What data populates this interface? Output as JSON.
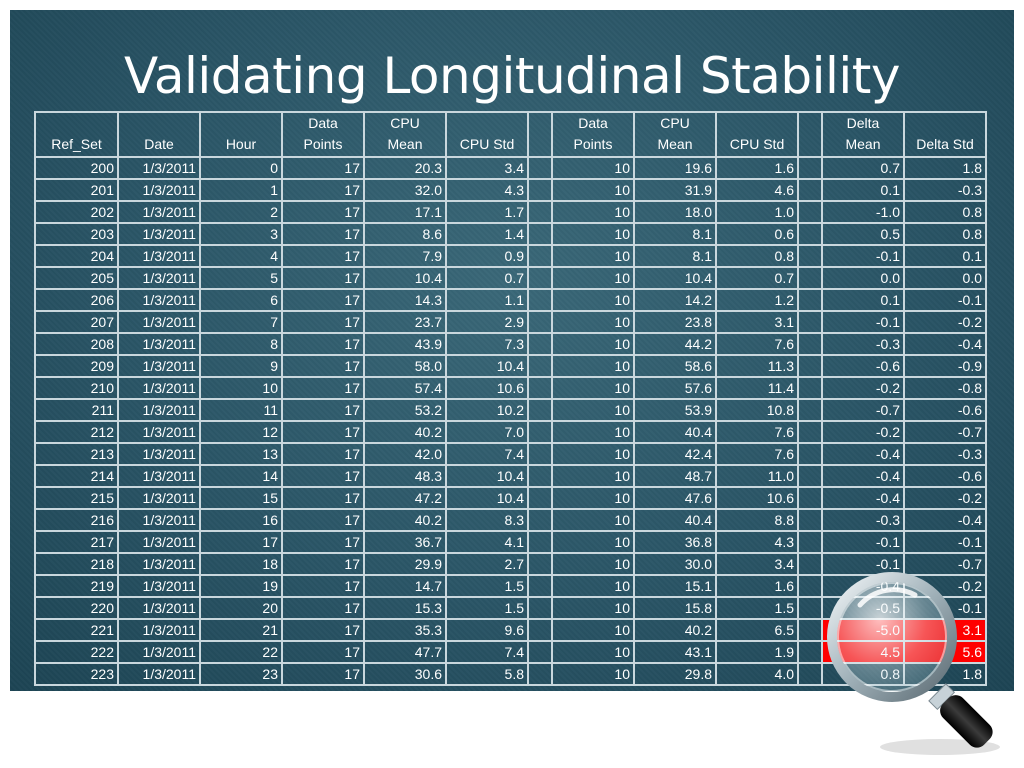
{
  "title": "Validating Longitudinal Stability",
  "headers": [
    [
      "Ref_Set"
    ],
    [
      "Date"
    ],
    [
      "Hour"
    ],
    [
      "Data",
      "Points"
    ],
    [
      "CPU",
      "Mean"
    ],
    [
      "CPU Std"
    ],
    [
      ""
    ],
    [
      "Data",
      "Points"
    ],
    [
      "CPU",
      "Mean"
    ],
    [
      "CPU Std"
    ],
    [
      ""
    ],
    [
      "Delta",
      "Mean"
    ],
    [
      "Delta Std"
    ]
  ],
  "rows": [
    [
      "200",
      "1/3/2011",
      "0",
      "17",
      "20.3",
      "3.4",
      "",
      "10",
      "19.6",
      "1.6",
      "",
      "0.7",
      "1.8"
    ],
    [
      "201",
      "1/3/2011",
      "1",
      "17",
      "32.0",
      "4.3",
      "",
      "10",
      "31.9",
      "4.6",
      "",
      "0.1",
      "-0.3"
    ],
    [
      "202",
      "1/3/2011",
      "2",
      "17",
      "17.1",
      "1.7",
      "",
      "10",
      "18.0",
      "1.0",
      "",
      "-1.0",
      "0.8"
    ],
    [
      "203",
      "1/3/2011",
      "3",
      "17",
      "8.6",
      "1.4",
      "",
      "10",
      "8.1",
      "0.6",
      "",
      "0.5",
      "0.8"
    ],
    [
      "204",
      "1/3/2011",
      "4",
      "17",
      "7.9",
      "0.9",
      "",
      "10",
      "8.1",
      "0.8",
      "",
      "-0.1",
      "0.1"
    ],
    [
      "205",
      "1/3/2011",
      "5",
      "17",
      "10.4",
      "0.7",
      "",
      "10",
      "10.4",
      "0.7",
      "",
      "0.0",
      "0.0"
    ],
    [
      "206",
      "1/3/2011",
      "6",
      "17",
      "14.3",
      "1.1",
      "",
      "10",
      "14.2",
      "1.2",
      "",
      "0.1",
      "-0.1"
    ],
    [
      "207",
      "1/3/2011",
      "7",
      "17",
      "23.7",
      "2.9",
      "",
      "10",
      "23.8",
      "3.1",
      "",
      "-0.1",
      "-0.2"
    ],
    [
      "208",
      "1/3/2011",
      "8",
      "17",
      "43.9",
      "7.3",
      "",
      "10",
      "44.2",
      "7.6",
      "",
      "-0.3",
      "-0.4"
    ],
    [
      "209",
      "1/3/2011",
      "9",
      "17",
      "58.0",
      "10.4",
      "",
      "10",
      "58.6",
      "11.3",
      "",
      "-0.6",
      "-0.9"
    ],
    [
      "210",
      "1/3/2011",
      "10",
      "17",
      "57.4",
      "10.6",
      "",
      "10",
      "57.6",
      "11.4",
      "",
      "-0.2",
      "-0.8"
    ],
    [
      "211",
      "1/3/2011",
      "11",
      "17",
      "53.2",
      "10.2",
      "",
      "10",
      "53.9",
      "10.8",
      "",
      "-0.7",
      "-0.6"
    ],
    [
      "212",
      "1/3/2011",
      "12",
      "17",
      "40.2",
      "7.0",
      "",
      "10",
      "40.4",
      "7.6",
      "",
      "-0.2",
      "-0.7"
    ],
    [
      "213",
      "1/3/2011",
      "13",
      "17",
      "42.0",
      "7.4",
      "",
      "10",
      "42.4",
      "7.6",
      "",
      "-0.4",
      "-0.3"
    ],
    [
      "214",
      "1/3/2011",
      "14",
      "17",
      "48.3",
      "10.4",
      "",
      "10",
      "48.7",
      "11.0",
      "",
      "-0.4",
      "-0.6"
    ],
    [
      "215",
      "1/3/2011",
      "15",
      "17",
      "47.2",
      "10.4",
      "",
      "10",
      "47.6",
      "10.6",
      "",
      "-0.4",
      "-0.2"
    ],
    [
      "216",
      "1/3/2011",
      "16",
      "17",
      "40.2",
      "8.3",
      "",
      "10",
      "40.4",
      "8.8",
      "",
      "-0.3",
      "-0.4"
    ],
    [
      "217",
      "1/3/2011",
      "17",
      "17",
      "36.7",
      "4.1",
      "",
      "10",
      "36.8",
      "4.3",
      "",
      "-0.1",
      "-0.1"
    ],
    [
      "218",
      "1/3/2011",
      "18",
      "17",
      "29.9",
      "2.7",
      "",
      "10",
      "30.0",
      "3.4",
      "",
      "-0.1",
      "-0.7"
    ],
    [
      "219",
      "1/3/2011",
      "19",
      "17",
      "14.7",
      "1.5",
      "",
      "10",
      "15.1",
      "1.6",
      "",
      "-0.4",
      "-0.2"
    ],
    [
      "220",
      "1/3/2011",
      "20",
      "17",
      "15.3",
      "1.5",
      "",
      "10",
      "15.8",
      "1.5",
      "",
      "-0.5",
      "-0.1"
    ],
    [
      "221",
      "1/3/2011",
      "21",
      "17",
      "35.3",
      "9.6",
      "",
      "10",
      "40.2",
      "6.5",
      "",
      "-5.0",
      "3.1"
    ],
    [
      "222",
      "1/3/2011",
      "22",
      "17",
      "47.7",
      "7.4",
      "",
      "10",
      "43.1",
      "1.9",
      "",
      "4.5",
      "5.6"
    ],
    [
      "223",
      "1/3/2011",
      "23",
      "17",
      "30.6",
      "5.8",
      "",
      "10",
      "29.8",
      "4.0",
      "",
      "0.8",
      "1.8"
    ]
  ],
  "highlight_rows": [
    21,
    22
  ],
  "highlight_cols": [
    11,
    12
  ],
  "highlight_color": "#ff0000",
  "decoration": "magnifying-glass-icon"
}
